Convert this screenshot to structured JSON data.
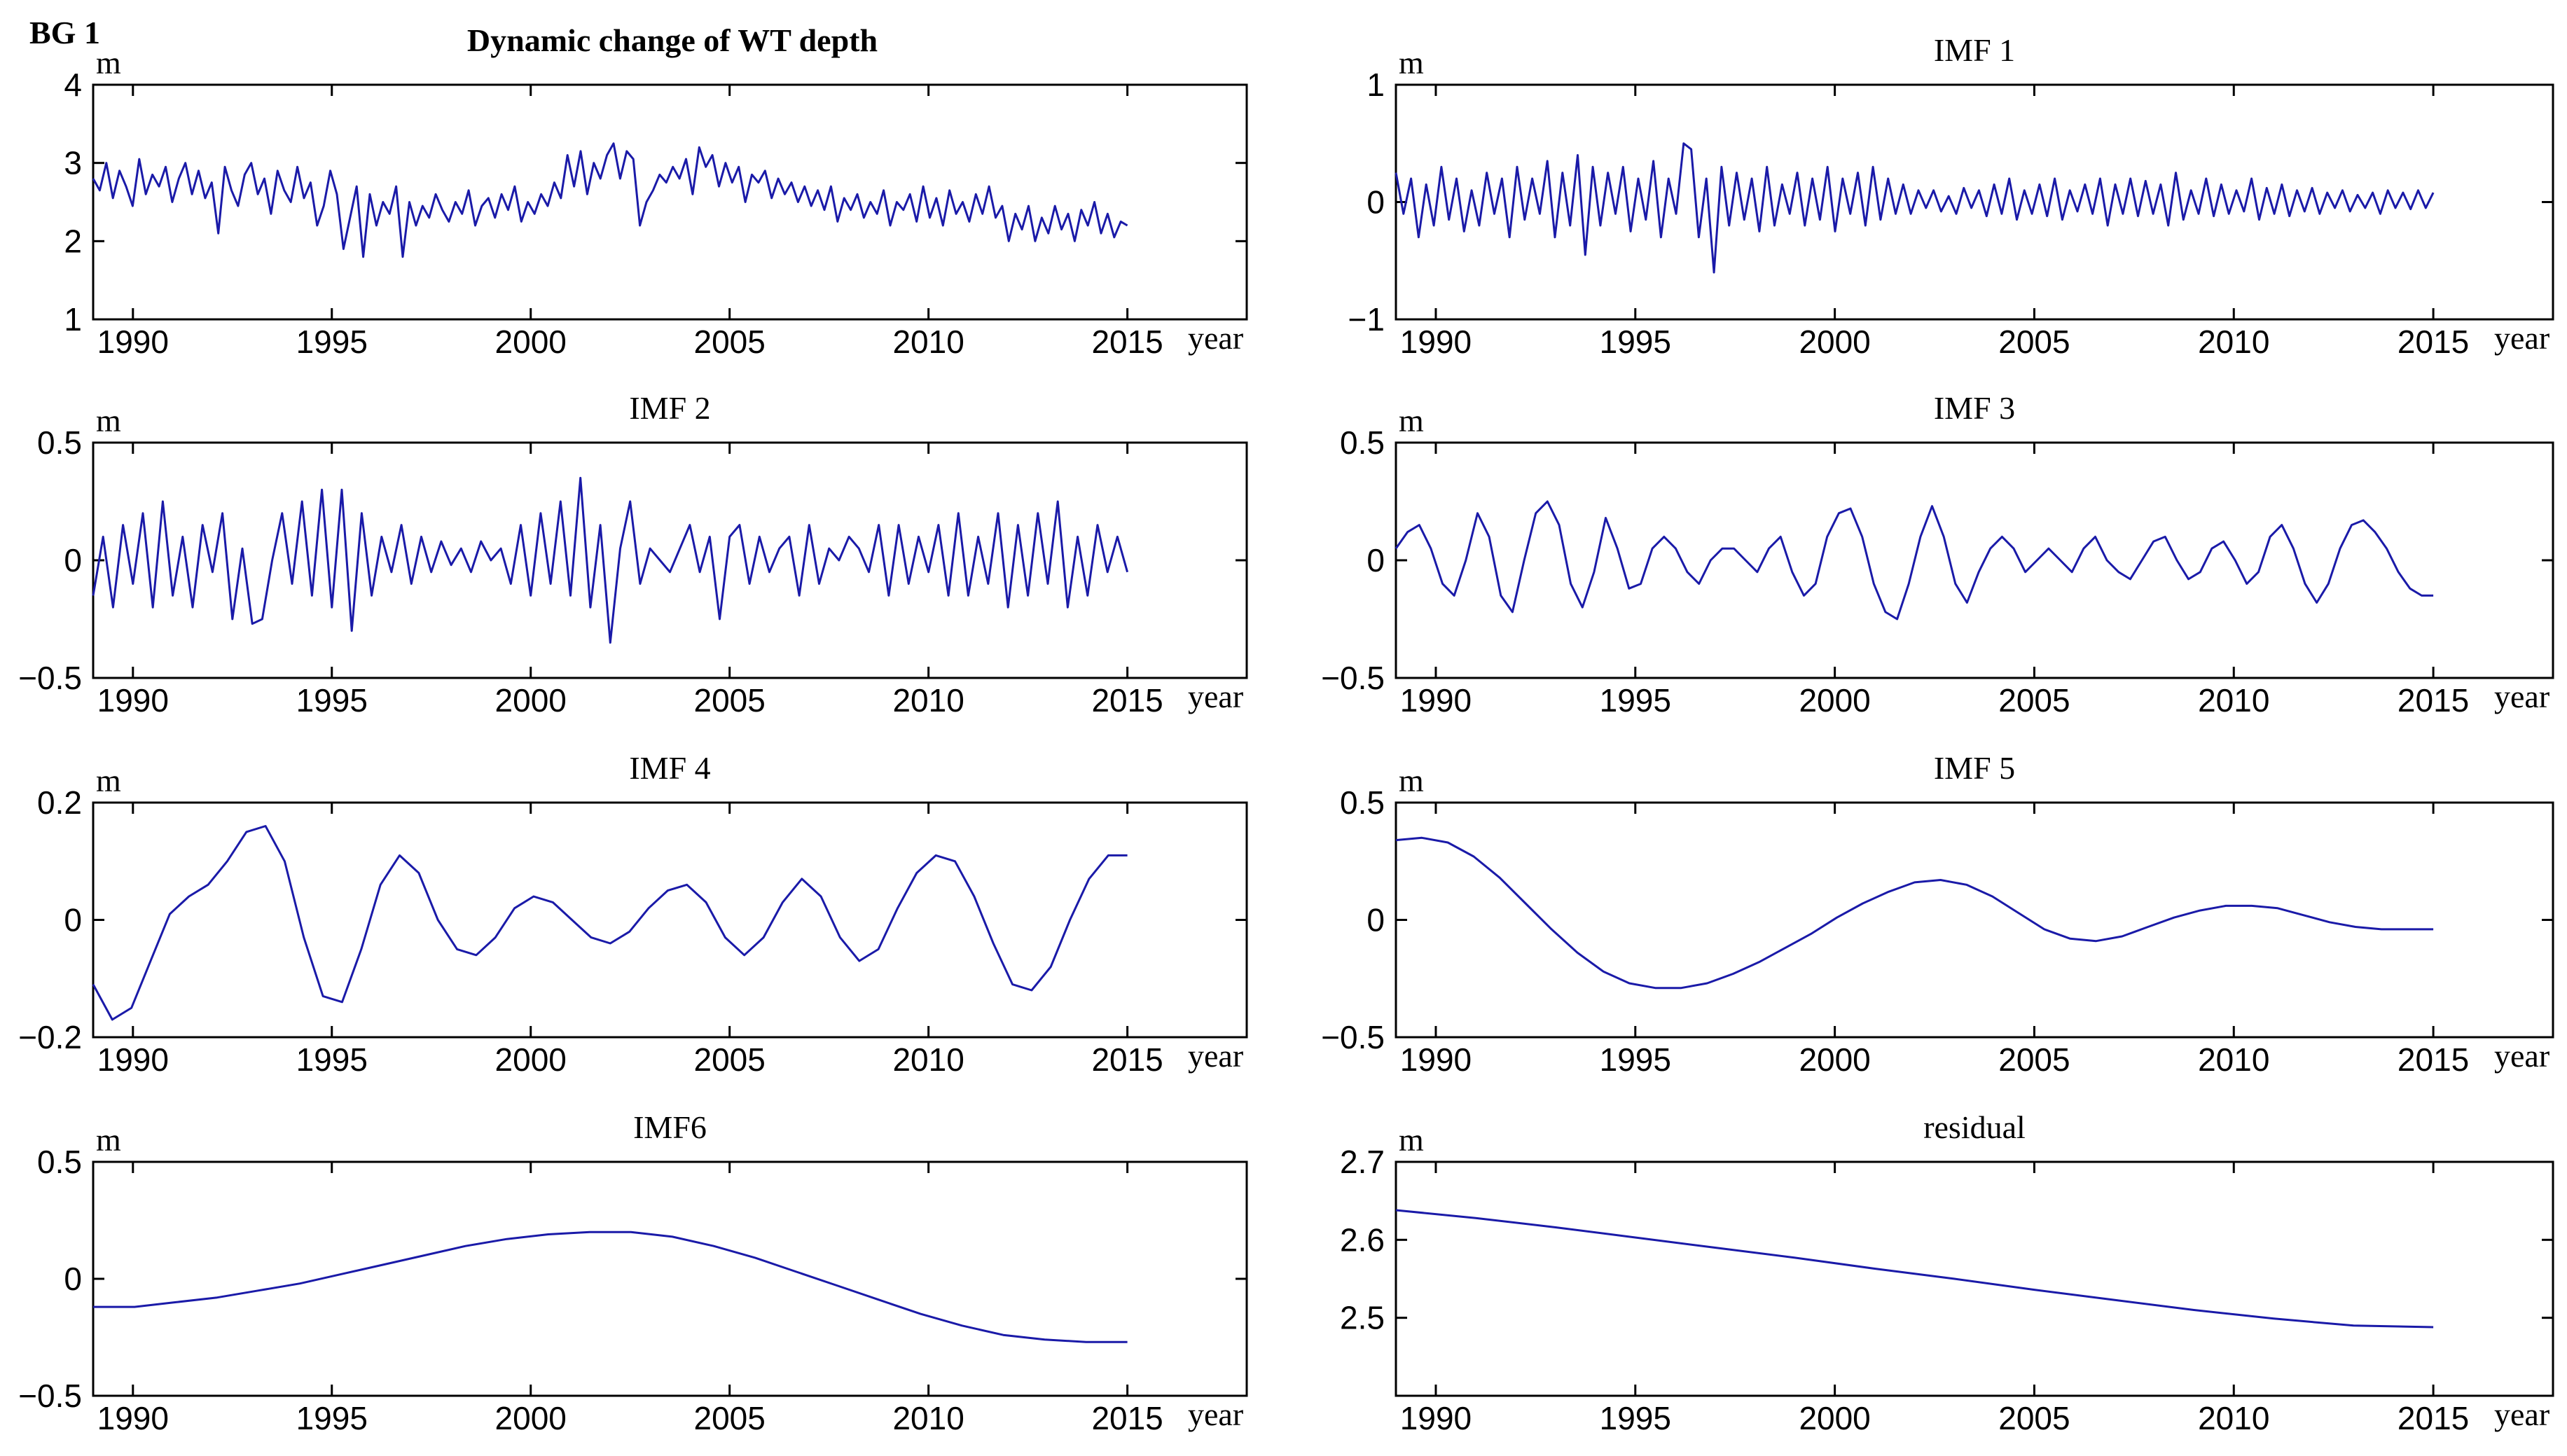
{
  "figure": {
    "label": "BG 1",
    "title": "Dynamic change of WT depth"
  },
  "colors": {
    "line": "#1a1aa8",
    "axis": "#000000",
    "background": "#ffffff"
  },
  "chart_data": [
    {
      "id": "wt",
      "type": "line",
      "title": "",
      "ylabel": "m",
      "xlabel": "year",
      "xlim": [
        1989,
        2018
      ],
      "xticks": [
        1990,
        1995,
        2000,
        2005,
        2010,
        2015
      ],
      "ylim": [
        1,
        4
      ],
      "yticks": [
        1,
        2,
        3,
        4
      ],
      "ytick_labels": [
        "1",
        "2",
        "3",
        "4"
      ],
      "series": [
        {
          "name": "WT depth",
          "x_start": 1989,
          "x_end": 2015,
          "values": [
            2.8,
            2.65,
            3.0,
            2.55,
            2.9,
            2.7,
            2.45,
            3.05,
            2.6,
            2.85,
            2.7,
            2.95,
            2.5,
            2.8,
            3.0,
            2.6,
            2.9,
            2.55,
            2.75,
            2.1,
            2.95,
            2.65,
            2.45,
            2.85,
            3.0,
            2.6,
            2.8,
            2.35,
            2.9,
            2.65,
            2.5,
            2.95,
            2.55,
            2.75,
            2.2,
            2.45,
            2.9,
            2.6,
            1.9,
            2.3,
            2.7,
            1.8,
            2.6,
            2.2,
            2.5,
            2.35,
            2.7,
            1.8,
            2.5,
            2.2,
            2.45,
            2.3,
            2.6,
            2.4,
            2.25,
            2.5,
            2.35,
            2.65,
            2.2,
            2.45,
            2.55,
            2.3,
            2.6,
            2.4,
            2.7,
            2.25,
            2.5,
            2.35,
            2.6,
            2.45,
            2.75,
            2.55,
            3.1,
            2.7,
            3.15,
            2.6,
            3.0,
            2.8,
            3.1,
            3.25,
            2.8,
            3.15,
            3.05,
            2.2,
            2.5,
            2.65,
            2.85,
            2.75,
            2.95,
            2.8,
            3.05,
            2.6,
            3.2,
            2.95,
            3.1,
            2.7,
            3.0,
            2.75,
            2.95,
            2.5,
            2.85,
            2.75,
            2.9,
            2.55,
            2.8,
            2.6,
            2.75,
            2.5,
            2.7,
            2.45,
            2.65,
            2.4,
            2.7,
            2.25,
            2.55,
            2.4,
            2.6,
            2.3,
            2.5,
            2.35,
            2.65,
            2.2,
            2.5,
            2.4,
            2.6,
            2.25,
            2.7,
            2.3,
            2.55,
            2.2,
            2.65,
            2.35,
            2.5,
            2.25,
            2.6,
            2.35,
            2.7,
            2.3,
            2.45,
            2.0,
            2.35,
            2.15,
            2.45,
            2.0,
            2.3,
            2.1,
            2.45,
            2.15,
            2.35,
            2.0,
            2.4,
            2.2,
            2.5,
            2.1,
            2.35,
            2.05,
            2.25,
            2.2
          ]
        }
      ]
    },
    {
      "id": "imf1",
      "type": "line",
      "title": "IMF 1",
      "ylabel": "m",
      "xlabel": "year",
      "xlim": [
        1989,
        2018
      ],
      "xticks": [
        1990,
        1995,
        2000,
        2005,
        2010,
        2015
      ],
      "ylim": [
        -1,
        1
      ],
      "yticks": [
        -1,
        0,
        1
      ],
      "ytick_labels": [
        "−1",
        "0",
        "1"
      ],
      "series": [
        {
          "name": "IMF 1",
          "x_start": 1989,
          "x_end": 2015,
          "values": [
            0.25,
            -0.1,
            0.2,
            -0.3,
            0.15,
            -0.2,
            0.3,
            -0.15,
            0.2,
            -0.25,
            0.1,
            -0.2,
            0.25,
            -0.1,
            0.2,
            -0.3,
            0.3,
            -0.15,
            0.2,
            -0.1,
            0.35,
            -0.3,
            0.25,
            -0.2,
            0.4,
            -0.45,
            0.3,
            -0.2,
            0.25,
            -0.1,
            0.3,
            -0.25,
            0.2,
            -0.15,
            0.35,
            -0.3,
            0.2,
            -0.1,
            0.5,
            0.45,
            -0.3,
            0.2,
            -0.6,
            0.3,
            -0.2,
            0.25,
            -0.15,
            0.2,
            -0.25,
            0.3,
            -0.2,
            0.15,
            -0.1,
            0.25,
            -0.2,
            0.2,
            -0.15,
            0.3,
            -0.25,
            0.2,
            -0.1,
            0.25,
            -0.2,
            0.3,
            -0.15,
            0.2,
            -0.1,
            0.15,
            -0.1,
            0.1,
            -0.05,
            0.1,
            -0.08,
            0.05,
            -0.1,
            0.12,
            -0.05,
            0.1,
            -0.12,
            0.15,
            -0.1,
            0.2,
            -0.15,
            0.1,
            -0.1,
            0.15,
            -0.12,
            0.2,
            -0.15,
            0.1,
            -0.08,
            0.15,
            -0.1,
            0.2,
            -0.2,
            0.15,
            -0.1,
            0.2,
            -0.12,
            0.18,
            -0.1,
            0.15,
            -0.2,
            0.25,
            -0.15,
            0.1,
            -0.1,
            0.2,
            -0.12,
            0.15,
            -0.1,
            0.1,
            -0.08,
            0.2,
            -0.15,
            0.12,
            -0.1,
            0.15,
            -0.12,
            0.1,
            -0.08,
            0.12,
            -0.1,
            0.08,
            -0.05,
            0.1,
            -0.08,
            0.06,
            -0.05,
            0.08,
            -0.1,
            0.1,
            -0.05,
            0.08,
            -0.06,
            0.1,
            -0.05,
            0.08
          ]
        }
      ]
    },
    {
      "id": "imf2",
      "type": "line",
      "title": "IMF 2",
      "ylabel": "m",
      "xlabel": "year",
      "xlim": [
        1989,
        2018
      ],
      "xticks": [
        1990,
        1995,
        2000,
        2005,
        2010,
        2015
      ],
      "ylim": [
        -0.5,
        0.5
      ],
      "yticks": [
        -0.5,
        0,
        0.5
      ],
      "ytick_labels": [
        "−0.5",
        "0",
        "0.5"
      ],
      "series": [
        {
          "name": "IMF 2",
          "x_start": 1989,
          "x_end": 2015,
          "values": [
            -0.15,
            0.1,
            -0.2,
            0.15,
            -0.1,
            0.2,
            -0.2,
            0.25,
            -0.15,
            0.1,
            -0.2,
            0.15,
            -0.05,
            0.2,
            -0.25,
            0.05,
            -0.27,
            -0.25,
            0.0,
            0.2,
            -0.1,
            0.25,
            -0.15,
            0.3,
            -0.2,
            0.3,
            -0.3,
            0.2,
            -0.15,
            0.1,
            -0.05,
            0.15,
            -0.1,
            0.1,
            -0.05,
            0.08,
            -0.02,
            0.05,
            -0.05,
            0.08,
            0.0,
            0.05,
            -0.1,
            0.15,
            -0.15,
            0.2,
            -0.1,
            0.25,
            -0.15,
            0.35,
            -0.2,
            0.15,
            -0.35,
            0.05,
            0.25,
            -0.1,
            0.05,
            0.0,
            -0.05,
            0.05,
            0.15,
            -0.05,
            0.1,
            -0.25,
            0.1,
            0.15,
            -0.1,
            0.1,
            -0.05,
            0.05,
            0.1,
            -0.15,
            0.15,
            -0.1,
            0.05,
            0.0,
            0.1,
            0.05,
            -0.05,
            0.15,
            -0.15,
            0.15,
            -0.1,
            0.1,
            -0.05,
            0.15,
            -0.15,
            0.2,
            -0.15,
            0.1,
            -0.1,
            0.2,
            -0.2,
            0.15,
            -0.15,
            0.2,
            -0.1,
            0.25,
            -0.2,
            0.1,
            -0.15,
            0.15,
            -0.05,
            0.1,
            -0.05
          ]
        }
      ]
    },
    {
      "id": "imf3",
      "type": "line",
      "title": "IMF 3",
      "ylabel": "m",
      "xlabel": "year",
      "xlim": [
        1989,
        2018
      ],
      "xticks": [
        1990,
        1995,
        2000,
        2005,
        2010,
        2015
      ],
      "ylim": [
        -0.5,
        0.5
      ],
      "yticks": [
        -0.5,
        0,
        0.5
      ],
      "ytick_labels": [
        "−0.5",
        "0",
        "0.5"
      ],
      "series": [
        {
          "name": "IMF 3",
          "x_start": 1989,
          "x_end": 2015,
          "values": [
            0.05,
            0.12,
            0.15,
            0.05,
            -0.1,
            -0.15,
            0.0,
            0.2,
            0.1,
            -0.15,
            -0.22,
            0.0,
            0.2,
            0.25,
            0.15,
            -0.1,
            -0.2,
            -0.05,
            0.18,
            0.05,
            -0.12,
            -0.1,
            0.05,
            0.1,
            0.05,
            -0.05,
            -0.1,
            0.0,
            0.05,
            0.05,
            0.0,
            -0.05,
            0.05,
            0.1,
            -0.05,
            -0.15,
            -0.1,
            0.1,
            0.2,
            0.22,
            0.1,
            -0.1,
            -0.22,
            -0.25,
            -0.1,
            0.1,
            0.23,
            0.1,
            -0.1,
            -0.18,
            -0.05,
            0.05,
            0.1,
            0.05,
            -0.05,
            0.0,
            0.05,
            0.0,
            -0.05,
            0.05,
            0.1,
            0.0,
            -0.05,
            -0.08,
            0.0,
            0.08,
            0.1,
            0.0,
            -0.08,
            -0.05,
            0.05,
            0.08,
            0.0,
            -0.1,
            -0.05,
            0.1,
            0.15,
            0.05,
            -0.1,
            -0.18,
            -0.1,
            0.05,
            0.15,
            0.17,
            0.12,
            0.05,
            -0.05,
            -0.12,
            -0.15,
            -0.15
          ]
        }
      ]
    },
    {
      "id": "imf4",
      "type": "line",
      "title": "IMF 4",
      "ylabel": "m",
      "xlabel": "year",
      "xlim": [
        1989,
        2018
      ],
      "xticks": [
        1990,
        1995,
        2000,
        2005,
        2010,
        2015
      ],
      "ylim": [
        -0.2,
        0.2
      ],
      "yticks": [
        -0.2,
        0,
        0.2
      ],
      "ytick_labels": [
        "−0.2",
        "0",
        "0.2"
      ],
      "series": [
        {
          "name": "IMF 4",
          "x_start": 1989,
          "x_end": 2015,
          "values": [
            -0.11,
            -0.17,
            -0.15,
            -0.07,
            0.01,
            0.04,
            0.06,
            0.1,
            0.15,
            0.16,
            0.1,
            -0.03,
            -0.13,
            -0.14,
            -0.05,
            0.06,
            0.11,
            0.08,
            0.0,
            -0.05,
            -0.06,
            -0.03,
            0.02,
            0.04,
            0.03,
            0.0,
            -0.03,
            -0.04,
            -0.02,
            0.02,
            0.05,
            0.06,
            0.03,
            -0.03,
            -0.06,
            -0.03,
            0.03,
            0.07,
            0.04,
            -0.03,
            -0.07,
            -0.05,
            0.02,
            0.08,
            0.11,
            0.1,
            0.04,
            -0.04,
            -0.11,
            -0.12,
            -0.08,
            0.0,
            0.07,
            0.11,
            0.11
          ]
        }
      ]
    },
    {
      "id": "imf5",
      "type": "line",
      "title": "IMF 5",
      "ylabel": "m",
      "xlabel": "year",
      "xlim": [
        1989,
        2018
      ],
      "xticks": [
        1990,
        1995,
        2000,
        2005,
        2010,
        2015
      ],
      "ylim": [
        -0.5,
        0.5
      ],
      "yticks": [
        -0.5,
        0,
        0.5
      ],
      "ytick_labels": [
        "−0.5",
        "0",
        "0.5"
      ],
      "series": [
        {
          "name": "IMF 5",
          "x_start": 1989,
          "x_end": 2015,
          "values": [
            0.34,
            0.35,
            0.33,
            0.27,
            0.18,
            0.07,
            -0.04,
            -0.14,
            -0.22,
            -0.27,
            -0.29,
            -0.29,
            -0.27,
            -0.23,
            -0.18,
            -0.12,
            -0.06,
            0.01,
            0.07,
            0.12,
            0.16,
            0.17,
            0.15,
            0.1,
            0.03,
            -0.04,
            -0.08,
            -0.09,
            -0.07,
            -0.03,
            0.01,
            0.04,
            0.06,
            0.06,
            0.05,
            0.02,
            -0.01,
            -0.03,
            -0.04,
            -0.04,
            -0.04
          ]
        }
      ]
    },
    {
      "id": "imf6",
      "type": "line",
      "title": "IMF6",
      "ylabel": "m",
      "xlabel": "year",
      "xlim": [
        1989,
        2018
      ],
      "xticks": [
        1990,
        1995,
        2000,
        2005,
        2010,
        2015
      ],
      "ylim": [
        -0.5,
        0.5
      ],
      "yticks": [
        -0.5,
        0,
        0.5
      ],
      "ytick_labels": [
        "−0.5",
        "0",
        "0.5"
      ],
      "series": [
        {
          "name": "IMF6",
          "x_start": 1989,
          "x_end": 2015,
          "values": [
            -0.12,
            -0.12,
            -0.1,
            -0.08,
            -0.05,
            -0.02,
            0.02,
            0.06,
            0.1,
            0.14,
            0.17,
            0.19,
            0.2,
            0.2,
            0.18,
            0.14,
            0.09,
            0.03,
            -0.03,
            -0.09,
            -0.15,
            -0.2,
            -0.24,
            -0.26,
            -0.27,
            -0.27
          ]
        }
      ]
    },
    {
      "id": "residual",
      "type": "line",
      "title": "residual",
      "ylabel": "m",
      "xlabel": "year",
      "xlim": [
        1989,
        2018
      ],
      "xticks": [
        1990,
        1995,
        2000,
        2005,
        2010,
        2015
      ],
      "ylim": [
        2.4,
        2.7
      ],
      "yticks": [
        2.5,
        2.6,
        2.7
      ],
      "ytick_labels": [
        "2.5",
        "2.6",
        "2.7"
      ],
      "series": [
        {
          "name": "residual",
          "x_start": 1989,
          "x_end": 2015,
          "values": [
            2.638,
            2.628,
            2.616,
            2.603,
            2.59,
            2.577,
            2.563,
            2.55,
            2.536,
            2.523,
            2.51,
            2.499,
            2.49,
            2.488
          ]
        }
      ]
    }
  ]
}
